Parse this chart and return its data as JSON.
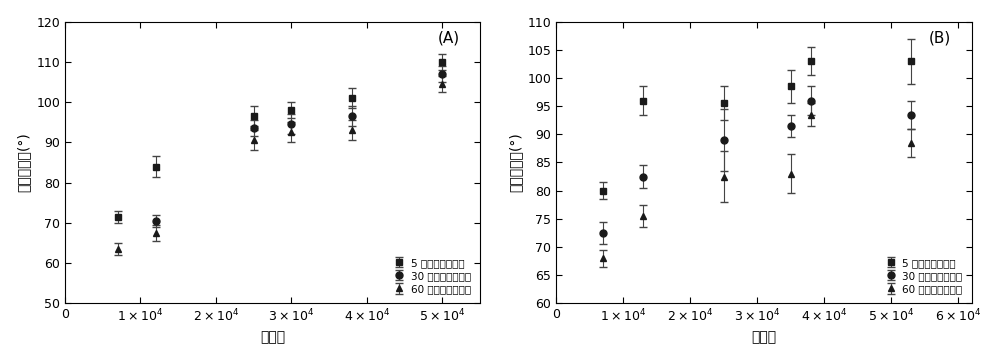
{
  "panel_A": {
    "title": "(A)",
    "xlabel": "分子量",
    "ylabel": "表面接触角(°)",
    "xlim": [
      0,
      55000
    ],
    "ylim": [
      50,
      120
    ],
    "yticks": [
      50,
      60,
      70,
      80,
      90,
      100,
      110,
      120
    ],
    "xticks": [
      0,
      10000,
      20000,
      30000,
      40000,
      50000
    ],
    "series": {
      "5s": {
        "label": "5 秒后表面接触角",
        "marker": "s",
        "x": [
          7000,
          12000,
          25000,
          30000,
          38000,
          50000
        ],
        "y": [
          71.5,
          84.0,
          96.5,
          98.0,
          101.0,
          110.0
        ],
        "yerr": [
          1.5,
          2.5,
          2.5,
          2.0,
          2.5,
          2.0
        ]
      },
      "30s": {
        "label": "30 秒后表面接触角",
        "marker": "o",
        "x": [
          12000,
          25000,
          30000,
          38000,
          50000
        ],
        "y": [
          70.5,
          93.5,
          94.5,
          96.5,
          107.0
        ],
        "yerr": [
          1.5,
          2.0,
          2.5,
          2.5,
          2.0
        ]
      },
      "60s": {
        "label": "60 秒后表面接触角",
        "marker": "^",
        "x": [
          7000,
          12000,
          25000,
          30000,
          38000,
          50000
        ],
        "y": [
          63.5,
          67.5,
          90.5,
          92.5,
          93.0,
          104.5
        ],
        "yerr": [
          1.5,
          2.0,
          2.5,
          2.5,
          2.5,
          2.0
        ]
      }
    }
  },
  "panel_B": {
    "title": "(B)",
    "xlabel": "分子量",
    "ylabel": "表面接触角(°)",
    "xlim": [
      0,
      62000
    ],
    "ylim": [
      60,
      110
    ],
    "yticks": [
      60,
      65,
      70,
      75,
      80,
      85,
      90,
      95,
      100,
      105,
      110
    ],
    "xticks": [
      0,
      10000,
      20000,
      30000,
      40000,
      50000,
      60000
    ],
    "series": {
      "5s": {
        "label": "5 秒后表面接触角",
        "marker": "s",
        "x": [
          7000,
          13000,
          25000,
          35000,
          38000,
          53000
        ],
        "y": [
          80.0,
          96.0,
          95.5,
          98.5,
          103.0,
          103.0
        ],
        "yerr": [
          1.5,
          2.5,
          3.0,
          3.0,
          2.5,
          4.0
        ]
      },
      "30s": {
        "label": "30 秒后表面接触角",
        "marker": "o",
        "x": [
          7000,
          13000,
          25000,
          35000,
          38000,
          53000
        ],
        "y": [
          72.5,
          82.5,
          89.0,
          91.5,
          96.0,
          93.5
        ],
        "yerr": [
          2.0,
          2.0,
          5.5,
          2.0,
          2.5,
          2.5
        ]
      },
      "60s": {
        "label": "60 秒后表面接触角",
        "marker": "^",
        "x": [
          7000,
          13000,
          25000,
          35000,
          38000,
          53000
        ],
        "y": [
          68.0,
          75.5,
          82.5,
          83.0,
          93.5,
          88.5
        ],
        "yerr": [
          1.5,
          2.0,
          4.5,
          3.5,
          2.0,
          2.5
        ]
      }
    }
  },
  "color": "#1a1a1a",
  "markersize": 5,
  "capsize": 3,
  "elinewidth": 0.8,
  "legend_fontsize": 7.5,
  "axis_fontsize": 10,
  "tick_fontsize": 9,
  "title_fontsize": 11
}
